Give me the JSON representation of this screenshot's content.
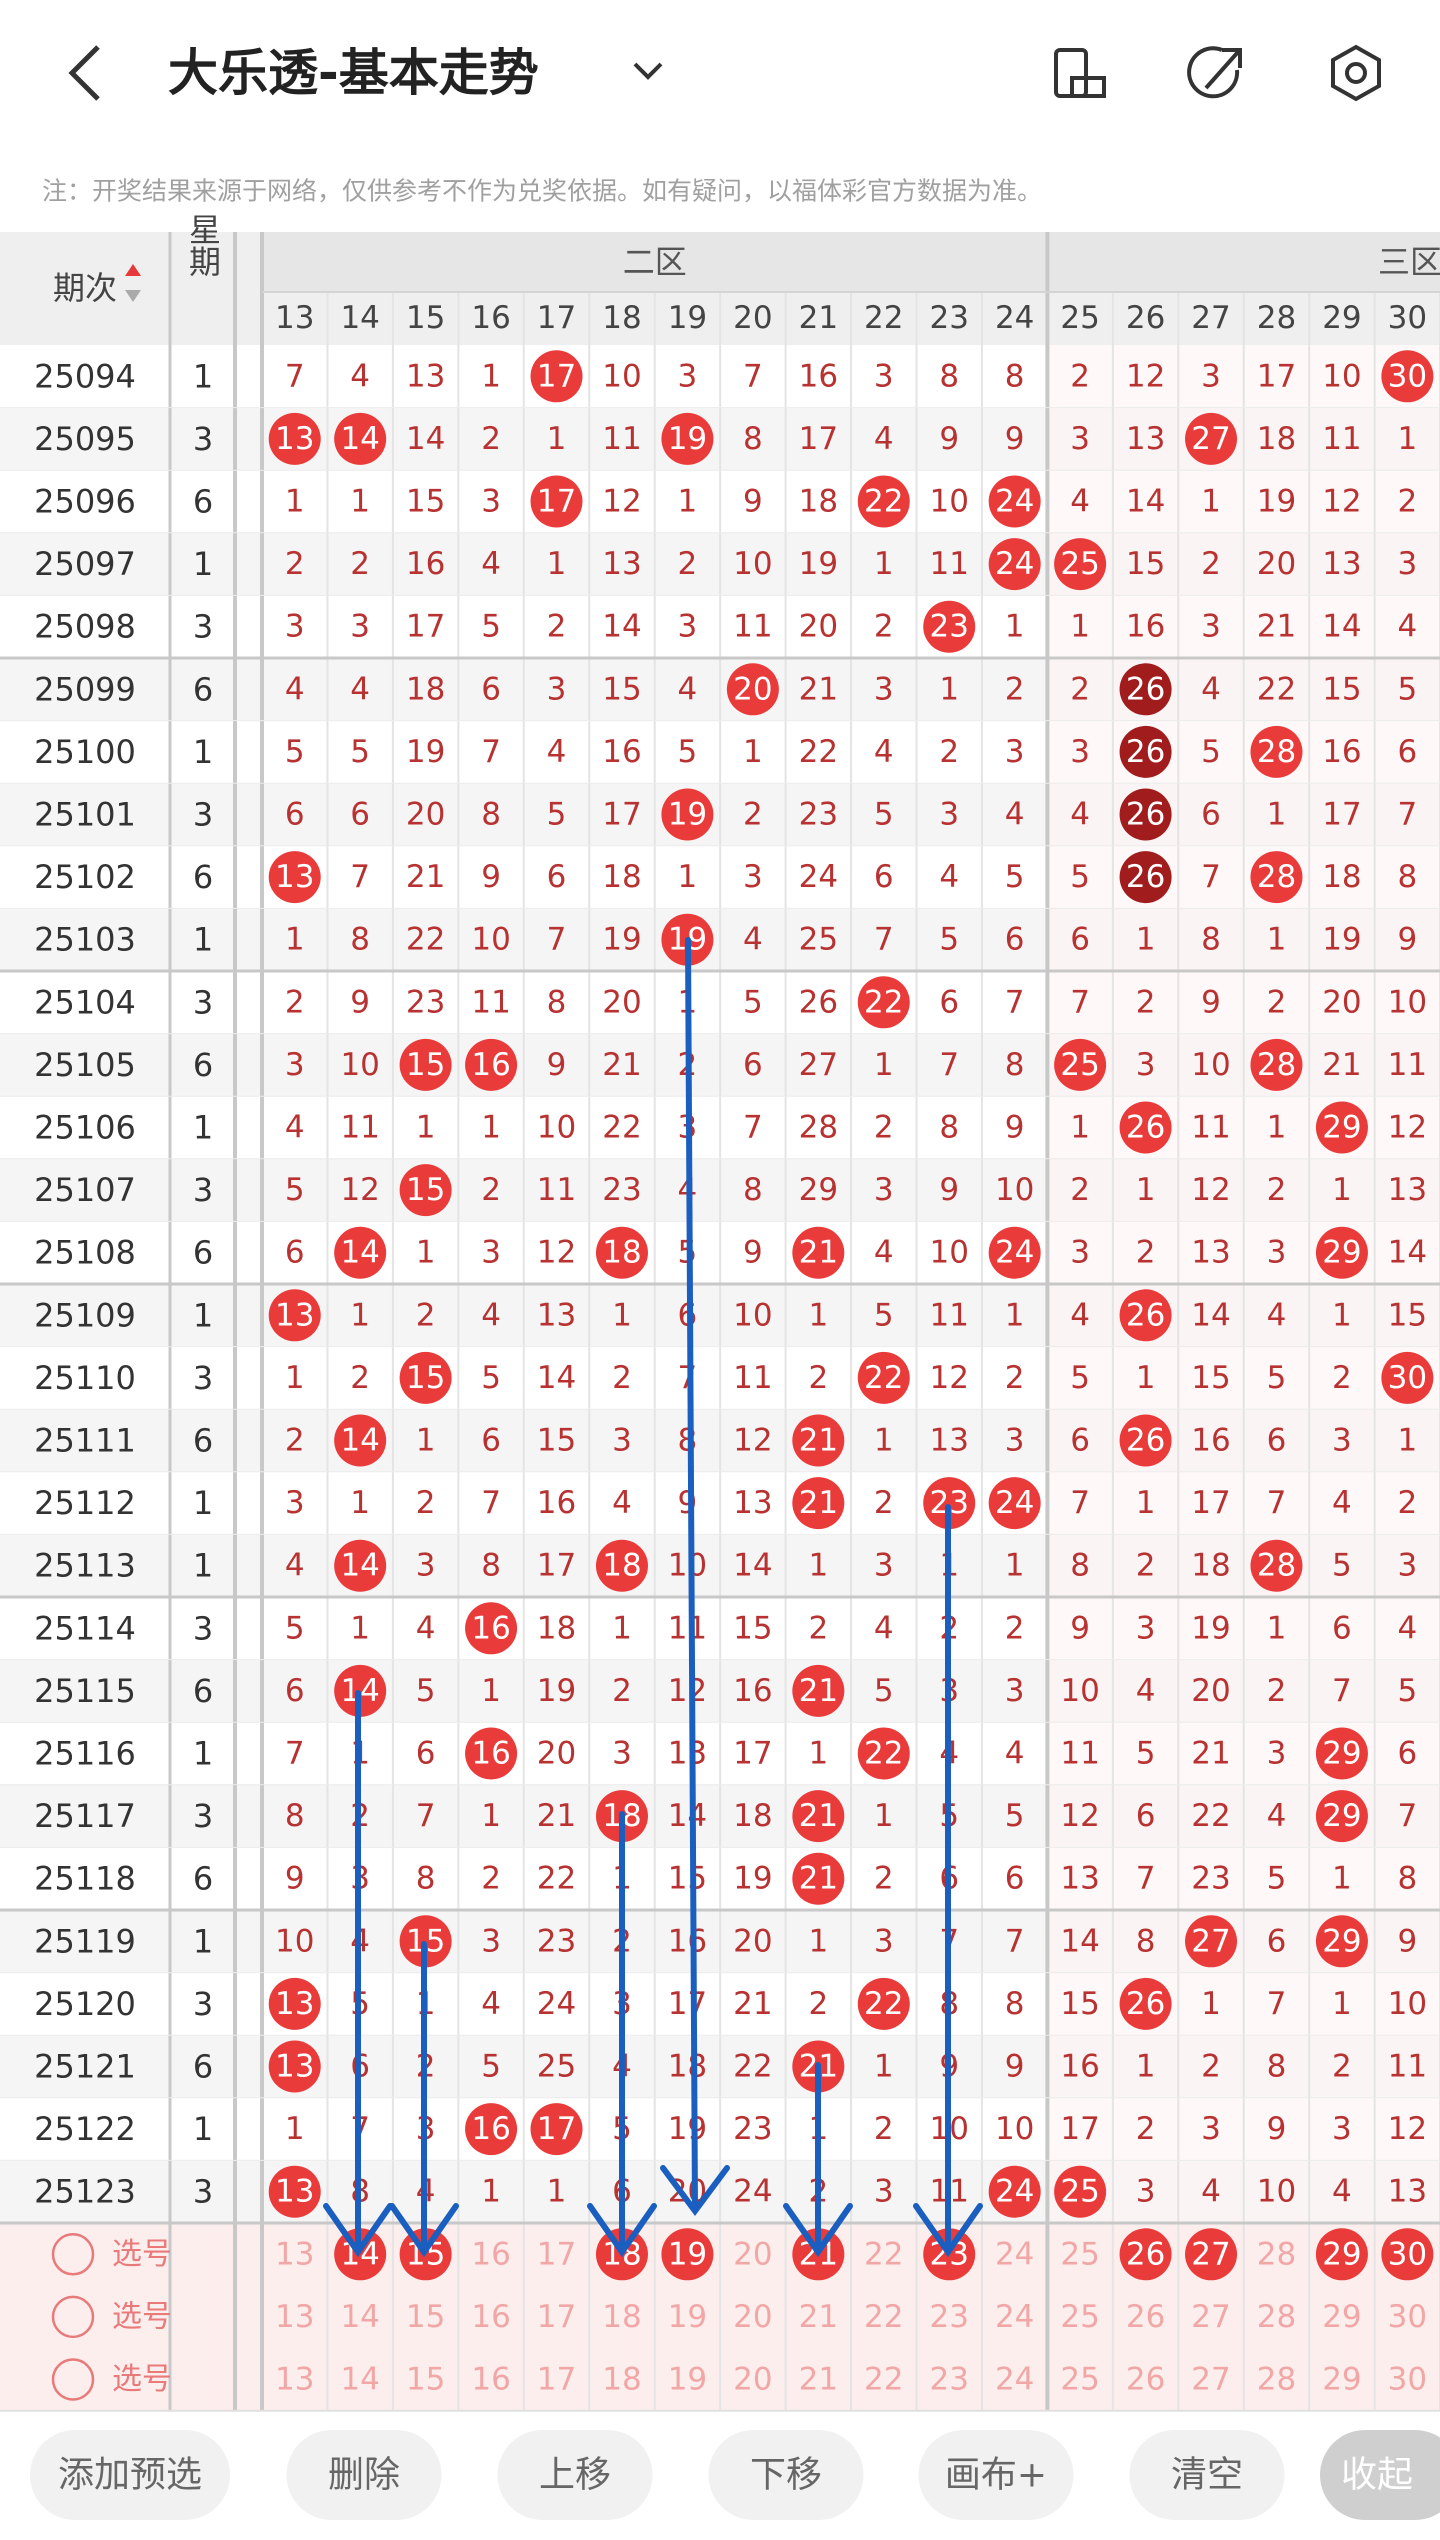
{
  "header": {
    "title": "大乐透-基本走势"
  },
  "notice": "注：开奖结果来源于网络，仅供参考不作为兑奖依据。如有疑问，以福体彩官方数据为准。",
  "table": {
    "issue_header": "期次",
    "weekday_header": "星期",
    "zones": [
      "二区",
      "三区"
    ],
    "columns": [
      13,
      14,
      15,
      16,
      17,
      18,
      19,
      20,
      21,
      22,
      23,
      24,
      25,
      26,
      27,
      28,
      29,
      30
    ],
    "rows": [
      {
        "issue": "25094",
        "weekday": 1,
        "values": [
          7,
          4,
          13,
          1,
          17,
          10,
          3,
          7,
          16,
          3,
          8,
          8,
          2,
          12,
          3,
          17,
          10,
          30
        ],
        "hits": [
          4,
          17
        ],
        "dark": []
      },
      {
        "issue": "25095",
        "weekday": 3,
        "values": [
          13,
          14,
          14,
          2,
          1,
          11,
          19,
          8,
          17,
          4,
          9,
          9,
          3,
          13,
          27,
          18,
          11,
          1
        ],
        "hits": [
          0,
          1,
          6,
          14
        ],
        "dark": []
      },
      {
        "issue": "25096",
        "weekday": 6,
        "values": [
          1,
          1,
          15,
          3,
          17,
          12,
          1,
          9,
          18,
          22,
          10,
          24,
          4,
          14,
          1,
          19,
          12,
          2
        ],
        "hits": [
          4,
          9,
          11
        ],
        "dark": []
      },
      {
        "issue": "25097",
        "weekday": 1,
        "values": [
          2,
          2,
          16,
          4,
          1,
          13,
          2,
          10,
          19,
          1,
          11,
          24,
          25,
          15,
          2,
          20,
          13,
          3
        ],
        "hits": [
          11,
          12
        ],
        "dark": []
      },
      {
        "issue": "25098",
        "weekday": 3,
        "values": [
          3,
          3,
          17,
          5,
          2,
          14,
          3,
          11,
          20,
          2,
          23,
          1,
          1,
          16,
          3,
          21,
          14,
          4
        ],
        "hits": [
          10
        ],
        "dark": []
      },
      {
        "issue": "25099",
        "weekday": 6,
        "values": [
          4,
          4,
          18,
          6,
          3,
          15,
          4,
          20,
          21,
          3,
          1,
          2,
          2,
          26,
          4,
          22,
          15,
          5
        ],
        "hits": [
          7
        ],
        "dark": [
          13
        ]
      },
      {
        "issue": "25100",
        "weekday": 1,
        "values": [
          5,
          5,
          19,
          7,
          4,
          16,
          5,
          1,
          22,
          4,
          2,
          3,
          3,
          26,
          5,
          28,
          16,
          6
        ],
        "hits": [
          15
        ],
        "dark": [
          13
        ]
      },
      {
        "issue": "25101",
        "weekday": 3,
        "values": [
          6,
          6,
          20,
          8,
          5,
          17,
          19,
          2,
          23,
          5,
          3,
          4,
          4,
          26,
          6,
          1,
          17,
          7
        ],
        "hits": [
          6
        ],
        "dark": [
          13
        ]
      },
      {
        "issue": "25102",
        "weekday": 6,
        "values": [
          13,
          7,
          21,
          9,
          6,
          18,
          1,
          3,
          24,
          6,
          4,
          5,
          5,
          26,
          7,
          28,
          18,
          8
        ],
        "hits": [
          0,
          15
        ],
        "dark": [
          13
        ]
      },
      {
        "issue": "25103",
        "weekday": 1,
        "values": [
          1,
          8,
          22,
          10,
          7,
          19,
          19,
          4,
          25,
          7,
          5,
          6,
          6,
          1,
          8,
          1,
          19,
          9
        ],
        "hits": [
          6
        ],
        "dark": []
      },
      {
        "issue": "25104",
        "weekday": 3,
        "values": [
          2,
          9,
          23,
          11,
          8,
          20,
          1,
          5,
          26,
          22,
          6,
          7,
          7,
          2,
          9,
          2,
          20,
          10
        ],
        "hits": [
          9
        ],
        "dark": []
      },
      {
        "issue": "25105",
        "weekday": 6,
        "values": [
          3,
          10,
          15,
          16,
          9,
          21,
          2,
          6,
          27,
          1,
          7,
          8,
          25,
          3,
          10,
          28,
          21,
          11
        ],
        "hits": [
          2,
          3,
          12,
          15
        ],
        "dark": []
      },
      {
        "issue": "25106",
        "weekday": 1,
        "values": [
          4,
          11,
          1,
          1,
          10,
          22,
          3,
          7,
          28,
          2,
          8,
          9,
          1,
          26,
          11,
          1,
          29,
          12
        ],
        "hits": [
          13,
          16
        ],
        "dark": []
      },
      {
        "issue": "25107",
        "weekday": 3,
        "values": [
          5,
          12,
          15,
          2,
          11,
          23,
          4,
          8,
          29,
          3,
          9,
          10,
          2,
          1,
          12,
          2,
          1,
          13
        ],
        "hits": [
          2
        ],
        "dark": []
      },
      {
        "issue": "25108",
        "weekday": 6,
        "values": [
          6,
          14,
          1,
          3,
          12,
          18,
          5,
          9,
          21,
          4,
          10,
          24,
          3,
          2,
          13,
          3,
          29,
          14
        ],
        "hits": [
          1,
          5,
          8,
          11,
          16
        ],
        "dark": []
      },
      {
        "issue": "25109",
        "weekday": 1,
        "values": [
          13,
          1,
          2,
          4,
          13,
          1,
          6,
          10,
          1,
          5,
          11,
          1,
          4,
          26,
          14,
          4,
          1,
          15
        ],
        "hits": [
          0,
          13
        ],
        "dark": []
      },
      {
        "issue": "25110",
        "weekday": 3,
        "values": [
          1,
          2,
          15,
          5,
          14,
          2,
          7,
          11,
          2,
          22,
          12,
          2,
          5,
          1,
          15,
          5,
          2,
          30
        ],
        "hits": [
          2,
          9,
          17
        ],
        "dark": []
      },
      {
        "issue": "25111",
        "weekday": 6,
        "values": [
          2,
          14,
          1,
          6,
          15,
          3,
          8,
          12,
          21,
          1,
          13,
          3,
          6,
          26,
          16,
          6,
          3,
          1
        ],
        "hits": [
          1,
          8,
          13
        ],
        "dark": []
      },
      {
        "issue": "25112",
        "weekday": 1,
        "values": [
          3,
          1,
          2,
          7,
          16,
          4,
          9,
          13,
          21,
          2,
          23,
          24,
          7,
          1,
          17,
          7,
          4,
          2
        ],
        "hits": [
          8,
          10,
          11
        ],
        "dark": []
      },
      {
        "issue": "25113",
        "weekday": 1,
        "values": [
          4,
          14,
          3,
          8,
          17,
          18,
          10,
          14,
          1,
          3,
          1,
          1,
          8,
          2,
          18,
          28,
          5,
          3
        ],
        "hits": [
          1,
          5,
          15
        ],
        "dark": []
      },
      {
        "issue": "25114",
        "weekday": 3,
        "values": [
          5,
          1,
          4,
          16,
          18,
          1,
          11,
          15,
          2,
          4,
          2,
          2,
          9,
          3,
          19,
          1,
          6,
          4
        ],
        "hits": [
          3
        ],
        "dark": []
      },
      {
        "issue": "25115",
        "weekday": 6,
        "values": [
          6,
          14,
          5,
          1,
          19,
          2,
          12,
          16,
          21,
          5,
          3,
          3,
          10,
          4,
          20,
          2,
          7,
          5
        ],
        "hits": [
          1,
          8
        ],
        "dark": []
      },
      {
        "issue": "25116",
        "weekday": 1,
        "values": [
          7,
          1,
          6,
          16,
          20,
          3,
          13,
          17,
          1,
          22,
          4,
          4,
          11,
          5,
          21,
          3,
          29,
          6
        ],
        "hits": [
          3,
          9,
          16
        ],
        "dark": []
      },
      {
        "issue": "25117",
        "weekday": 3,
        "values": [
          8,
          2,
          7,
          1,
          21,
          18,
          14,
          18,
          21,
          1,
          5,
          5,
          12,
          6,
          22,
          4,
          29,
          7
        ],
        "hits": [
          5,
          8,
          16
        ],
        "dark": []
      },
      {
        "issue": "25118",
        "weekday": 6,
        "values": [
          9,
          3,
          8,
          2,
          22,
          1,
          15,
          19,
          21,
          2,
          6,
          6,
          13,
          7,
          23,
          5,
          1,
          8
        ],
        "hits": [
          8
        ],
        "dark": []
      },
      {
        "issue": "25119",
        "weekday": 1,
        "values": [
          10,
          4,
          15,
          3,
          23,
          2,
          16,
          20,
          1,
          3,
          7,
          7,
          14,
          8,
          27,
          6,
          29,
          9
        ],
        "hits": [
          2,
          14,
          16
        ],
        "dark": []
      },
      {
        "issue": "25120",
        "weekday": 3,
        "values": [
          13,
          5,
          1,
          4,
          24,
          3,
          17,
          21,
          2,
          22,
          8,
          8,
          15,
          26,
          1,
          7,
          1,
          10
        ],
        "hits": [
          0,
          9,
          13
        ],
        "dark": []
      },
      {
        "issue": "25121",
        "weekday": 6,
        "values": [
          13,
          6,
          2,
          5,
          25,
          4,
          18,
          22,
          21,
          1,
          9,
          9,
          16,
          1,
          2,
          8,
          2,
          11
        ],
        "hits": [
          0,
          8
        ],
        "dark": []
      },
      {
        "issue": "25122",
        "weekday": 1,
        "values": [
          1,
          7,
          3,
          16,
          17,
          5,
          19,
          23,
          1,
          2,
          10,
          10,
          17,
          2,
          3,
          9,
          3,
          12
        ],
        "hits": [
          3,
          4
        ],
        "dark": []
      },
      {
        "issue": "25123",
        "weekday": 3,
        "values": [
          13,
          8,
          4,
          1,
          1,
          6,
          20,
          24,
          2,
          3,
          11,
          24,
          25,
          3,
          4,
          10,
          4,
          13
        ],
        "hits": [
          0,
          11,
          12
        ],
        "dark": []
      }
    ]
  },
  "selection": [
    {
      "label": "选号",
      "picks": [
        1,
        2,
        5,
        6,
        8,
        10,
        13,
        14,
        16,
        17
      ]
    },
    {
      "label": "选号",
      "picks": []
    },
    {
      "label": "选号",
      "picks": []
    }
  ],
  "toolbar": [
    "添加预选",
    "删除",
    "上移",
    "下移",
    "画布+",
    "清空",
    "收起"
  ]
}
